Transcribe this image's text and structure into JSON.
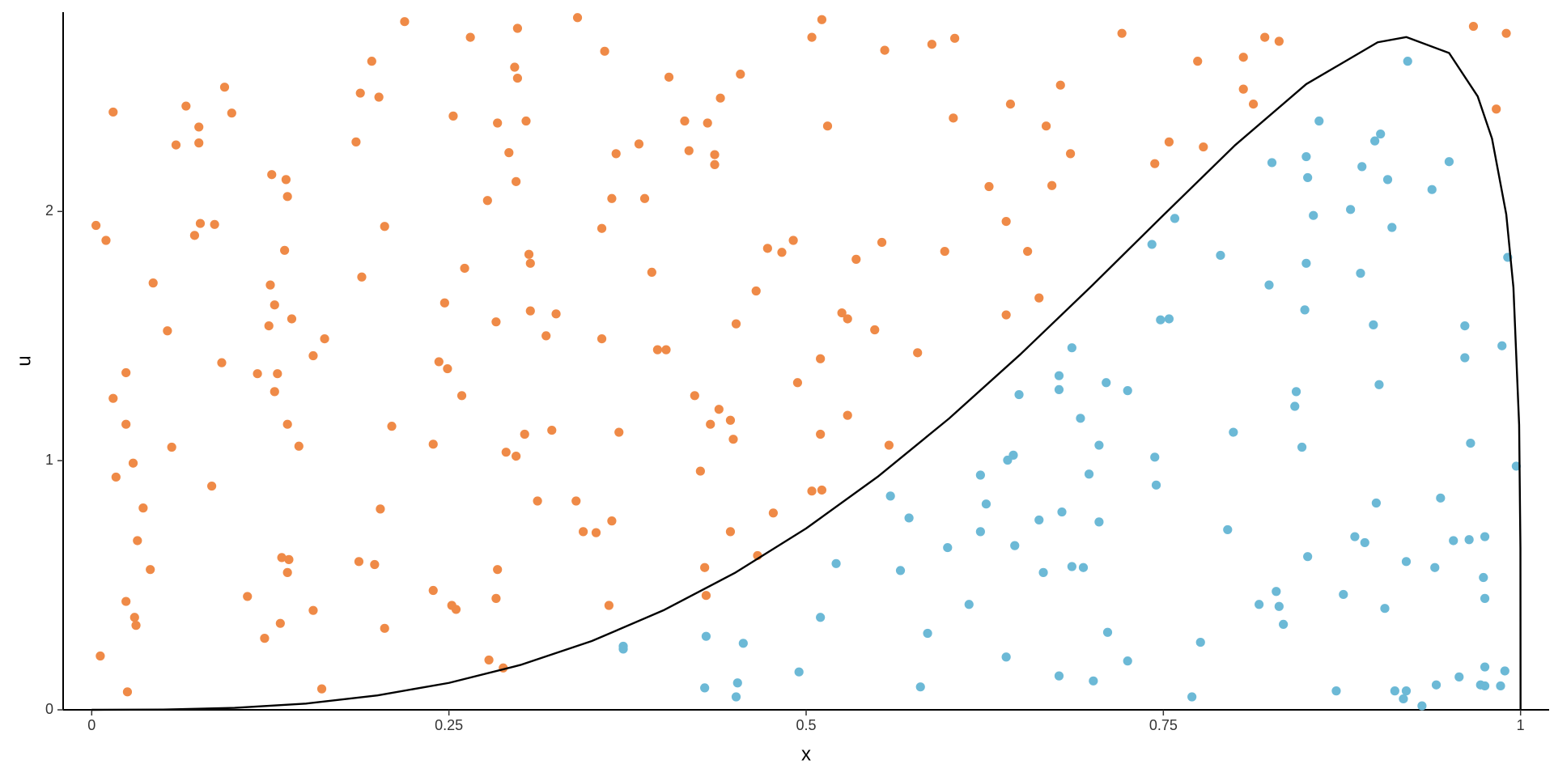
{
  "chart_data": {
    "type": "scatter",
    "xlabel": "x",
    "ylabel": "u",
    "xlim": [
      -0.02,
      1.02
    ],
    "ylim": [
      0,
      2.8
    ],
    "xticks": [
      0,
      0.25,
      0.5,
      0.75,
      1
    ],
    "yticks": [
      0,
      1,
      2
    ],
    "grid": false,
    "series": [
      {
        "type": "scatter",
        "color": "#ef8a47",
        "x": [
          0.003,
          0.01,
          0.015,
          0.006,
          0.017,
          0.015,
          0.024,
          0.024,
          0.029,
          0.024,
          0.03,
          0.031,
          0.032,
          0.036,
          0.041,
          0.043,
          0.025,
          0.053,
          0.056,
          0.059,
          0.066,
          0.072,
          0.075,
          0.075,
          0.076,
          0.086,
          0.084,
          0.091,
          0.093,
          0.098,
          0.109,
          0.116,
          0.121,
          0.126,
          0.125,
          0.128,
          0.128,
          0.124,
          0.13,
          0.133,
          0.136,
          0.137,
          0.135,
          0.137,
          0.132,
          0.137,
          0.138,
          0.14,
          0.145,
          0.155,
          0.155,
          0.161,
          0.163,
          0.185,
          0.188,
          0.189,
          0.187,
          0.196,
          0.198,
          0.201,
          0.202,
          0.205,
          0.205,
          0.21,
          0.219,
          0.239,
          0.239,
          0.243,
          0.247,
          0.249,
          0.253,
          0.252,
          0.255,
          0.259,
          0.261,
          0.265,
          0.277,
          0.284,
          0.283,
          0.284,
          0.283,
          0.29,
          0.288,
          0.278,
          0.292,
          0.297,
          0.296,
          0.298,
          0.298,
          0.297,
          0.303,
          0.304,
          0.306,
          0.307,
          0.307,
          0.312,
          0.318,
          0.322,
          0.325,
          0.339,
          0.34,
          0.344,
          0.353,
          0.364,
          0.362,
          0.359,
          0.357,
          0.357,
          0.364,
          0.367,
          0.369,
          0.383,
          0.387,
          0.392,
          0.396,
          0.402,
          0.404,
          0.415,
          0.418,
          0.422,
          0.426,
          0.429,
          0.43,
          0.431,
          0.433,
          0.436,
          0.436,
          0.439,
          0.44,
          0.447,
          0.447,
          0.449,
          0.451,
          0.454,
          0.466,
          0.465,
          0.477,
          0.473,
          0.483,
          0.491,
          0.494,
          0.504,
          0.511,
          0.504,
          0.511,
          0.51,
          0.51,
          0.515,
          0.525,
          0.529,
          0.529,
          0.535,
          0.548,
          0.553,
          0.555,
          0.558,
          0.578,
          0.588,
          0.597,
          0.603,
          0.604,
          0.628,
          0.64,
          0.64,
          0.643,
          0.655,
          0.663,
          0.668,
          0.672,
          0.678,
          0.685,
          0.721,
          0.744,
          0.754,
          0.774,
          0.778,
          0.806,
          0.806,
          0.813,
          0.821,
          0.831,
          0.967,
          0.983,
          0.99
        ],
        "values": [
          1.944,
          1.884,
          2.399,
          0.216,
          0.934,
          1.25,
          1.353,
          1.146,
          0.99,
          0.435,
          0.371,
          0.339,
          0.679,
          0.81,
          0.563,
          1.713,
          0.072,
          1.521,
          1.054,
          2.267,
          2.423,
          1.904,
          2.339,
          2.275,
          1.952,
          1.948,
          0.898,
          1.393,
          2.499,
          2.395,
          0.455,
          1.349,
          0.287,
          2.148,
          1.705,
          1.625,
          1.277,
          1.541,
          1.349,
          0.611,
          2.128,
          2.06,
          1.844,
          1.146,
          0.347,
          0.551,
          0.603,
          1.569,
          1.058,
          0.399,
          1.421,
          0.084,
          1.489,
          2.279,
          2.475,
          1.737,
          0.595,
          2.603,
          0.583,
          2.459,
          0.806,
          0.327,
          1.94,
          1.138,
          2.762,
          1.066,
          0.479,
          1.397,
          1.633,
          1.369,
          2.383,
          0.419,
          0.403,
          1.261,
          1.772,
          2.699,
          2.044,
          2.355,
          1.557,
          0.563,
          0.447,
          1.034,
          0.168,
          0.2,
          2.236,
          1.018,
          2.579,
          2.735,
          2.535,
          2.12,
          1.106,
          2.363,
          1.828,
          1.792,
          1.601,
          0.838,
          1.501,
          1.122,
          1.589,
          0.838,
          2.778,
          0.715,
          0.711,
          0.758,
          0.419,
          2.643,
          1.932,
          1.489,
          2.052,
          2.232,
          1.114,
          2.271,
          2.052,
          1.756,
          1.445,
          1.445,
          2.539,
          2.363,
          2.244,
          1.261,
          0.958,
          0.571,
          0.459,
          2.355,
          1.146,
          2.228,
          2.188,
          1.206,
          2.455,
          1.162,
          0.715,
          1.086,
          1.549,
          2.551,
          0.619,
          1.681,
          0.79,
          1.852,
          1.836,
          1.884,
          1.313,
          2.699,
          2.77,
          0.878,
          0.882,
          1.106,
          1.409,
          2.343,
          1.593,
          1.569,
          1.182,
          1.808,
          1.525,
          1.876,
          2.647,
          1.062,
          1.433,
          2.671,
          1.84,
          2.375,
          2.695,
          2.1,
          1.96,
          1.585,
          2.431,
          1.84,
          1.653,
          2.343,
          2.104,
          2.507,
          2.232,
          2.715,
          2.192,
          2.279,
          2.603,
          2.259,
          2.619,
          2.491,
          2.431,
          2.699,
          2.683,
          2.743,
          2.411,
          2.715
        ]
      },
      {
        "type": "scatter",
        "color": "#6cb9d6",
        "x": [
          0.372,
          0.372,
          0.429,
          0.43,
          0.452,
          0.451,
          0.456,
          0.495,
          0.51,
          0.521,
          0.559,
          0.572,
          0.566,
          0.585,
          0.58,
          0.599,
          0.614,
          0.622,
          0.626,
          0.622,
          0.641,
          0.645,
          0.646,
          0.64,
          0.649,
          0.663,
          0.666,
          0.677,
          0.677,
          0.679,
          0.677,
          0.686,
          0.686,
          0.694,
          0.692,
          0.698,
          0.701,
          0.705,
          0.705,
          0.71,
          0.711,
          0.725,
          0.725,
          0.742,
          0.744,
          0.745,
          0.758,
          0.748,
          0.754,
          0.77,
          0.776,
          0.79,
          0.795,
          0.799,
          0.817,
          0.824,
          0.826,
          0.829,
          0.831,
          0.834,
          0.843,
          0.842,
          0.85,
          0.851,
          0.85,
          0.849,
          0.847,
          0.851,
          0.855,
          0.859,
          0.871,
          0.876,
          0.881,
          0.884,
          0.889,
          0.888,
          0.891,
          0.897,
          0.899,
          0.901,
          0.898,
          0.902,
          0.905,
          0.907,
          0.91,
          0.912,
          0.92,
          0.921,
          0.918,
          0.92,
          0.931,
          0.938,
          0.94,
          0.941,
          0.944,
          0.95,
          0.953,
          0.957,
          0.961,
          0.961,
          0.964,
          0.965,
          0.972,
          0.975,
          0.975,
          0.974,
          0.975,
          0.975,
          0.986,
          0.987,
          0.989,
          0.991,
          0.997
        ],
        "values": [
          0.244,
          0.255,
          0.088,
          0.295,
          0.108,
          0.052,
          0.267,
          0.152,
          0.371,
          0.587,
          0.858,
          0.77,
          0.559,
          0.307,
          0.092,
          0.651,
          0.423,
          0.942,
          0.826,
          0.715,
          1.002,
          1.022,
          0.659,
          0.212,
          1.265,
          0.762,
          0.551,
          1.341,
          1.285,
          0.794,
          0.136,
          1.453,
          0.575,
          0.571,
          1.17,
          0.946,
          0.116,
          1.062,
          0.754,
          1.313,
          0.311,
          1.281,
          0.196,
          1.868,
          1.014,
          0.902,
          1.972,
          1.565,
          1.569,
          0.052,
          0.271,
          1.824,
          0.723,
          1.114,
          0.423,
          1.705,
          2.196,
          0.475,
          0.415,
          0.343,
          1.277,
          1.218,
          2.22,
          2.136,
          1.792,
          1.605,
          1.054,
          0.615,
          1.984,
          2.363,
          0.076,
          0.463,
          2.008,
          0.695,
          2.18,
          1.752,
          0.671,
          1.545,
          0.83,
          1.305,
          2.283,
          2.311,
          0.407,
          2.128,
          1.936,
          0.076,
          0.595,
          2.603,
          0.044,
          0.076,
          0.016,
          2.088,
          0.571,
          0.1,
          0.85,
          2.2,
          0.679,
          0.132,
          1.541,
          1.413,
          0.683,
          1.07,
          0.1,
          0.695,
          0.447,
          0.531,
          0.172,
          0.096,
          0.096,
          1.461,
          0.156,
          1.816,
          0.978
        ]
      },
      {
        "type": "line",
        "color": "#000000",
        "x": [
          0,
          0.05,
          0.1,
          0.15,
          0.2,
          0.25,
          0.3,
          0.35,
          0.4,
          0.45,
          0.5,
          0.55,
          0.6,
          0.65,
          0.7,
          0.75,
          0.8,
          0.85,
          0.9,
          0.92,
          0.95,
          0.97,
          0.98,
          0.99,
          0.995,
          0.999,
          0.9999,
          1
        ],
        "values": [
          0,
          0.001,
          0.008,
          0.025,
          0.058,
          0.108,
          0.18,
          0.276,
          0.399,
          0.549,
          0.728,
          0.935,
          1.169,
          1.427,
          1.702,
          1.985,
          2.265,
          2.511,
          2.679,
          2.7,
          2.636,
          2.462,
          2.293,
          1.988,
          1.695,
          1.143,
          0.647,
          0
        ]
      }
    ]
  }
}
